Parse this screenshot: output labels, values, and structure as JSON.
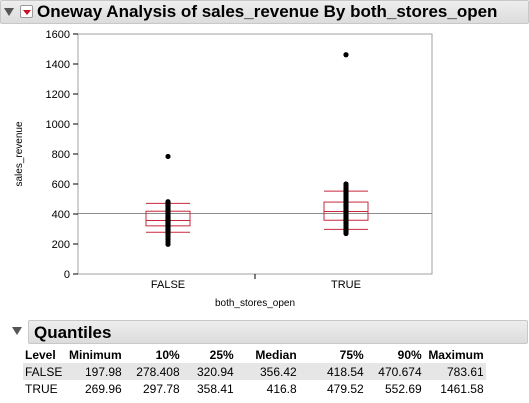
{
  "header": {
    "title": "Oneway Analysis of sales_revenue By both_stores_open"
  },
  "chart_data": {
    "type": "scatter",
    "xlabel": "both_stores_open",
    "ylabel": "sales_revenue",
    "ylim": [
      0,
      1600
    ],
    "yticks": [
      0,
      200,
      400,
      600,
      800,
      1000,
      1200,
      1400,
      1600
    ],
    "categories": [
      "FALSE",
      "TRUE"
    ],
    "grand_mean": 403,
    "grid": false,
    "boxes": [
      {
        "level": "FALSE",
        "min": 197.98,
        "q10": 278.408,
        "q1": 320.94,
        "median": 356.42,
        "q3": 418.54,
        "q90": 470.674,
        "max": 783.61
      },
      {
        "level": "TRUE",
        "min": 269.96,
        "q10": 297.78,
        "q1": 358.41,
        "median": 416.8,
        "q3": 479.52,
        "q90": 552.69,
        "max": 1461.58
      }
    ],
    "points": [
      {
        "level": "FALSE",
        "values": [
          197.98,
          215,
          232,
          248,
          260,
          270,
          278,
          285,
          292,
          298,
          305,
          312,
          318,
          321,
          326,
          332,
          338,
          343,
          348,
          352,
          356,
          360,
          365,
          370,
          376,
          382,
          388,
          395,
          402,
          410,
          418,
          425,
          432,
          440,
          448,
          456,
          463,
          470,
          476,
          482,
          783.61
        ]
      },
      {
        "level": "TRUE",
        "values": [
          269.96,
          282,
          292,
          300,
          310,
          322,
          334,
          346,
          358,
          366,
          375,
          384,
          392,
          400,
          408,
          416,
          424,
          432,
          440,
          448,
          456,
          465,
          474,
          480,
          490,
          500,
          510,
          520,
          532,
          544,
          553,
          565,
          578,
          590,
          600,
          1461.58
        ]
      }
    ]
  },
  "quantiles": {
    "title": "Quantiles",
    "headers": [
      "Level",
      "Minimum",
      "10%",
      "25%",
      "Median",
      "75%",
      "90%",
      "Maximum"
    ],
    "rows": [
      [
        "FALSE",
        "197.98",
        "278.408",
        "320.94",
        "356.42",
        "418.54",
        "470.674",
        "783.61"
      ],
      [
        "TRUE",
        "269.96",
        "297.78",
        "358.41",
        "416.8",
        "479.52",
        "552.69",
        "1461.58"
      ]
    ]
  },
  "colors": {
    "box": "#c8283c",
    "points": "#000000",
    "mean_line": "#8c8c8c",
    "frame": "#a0a0a0"
  }
}
